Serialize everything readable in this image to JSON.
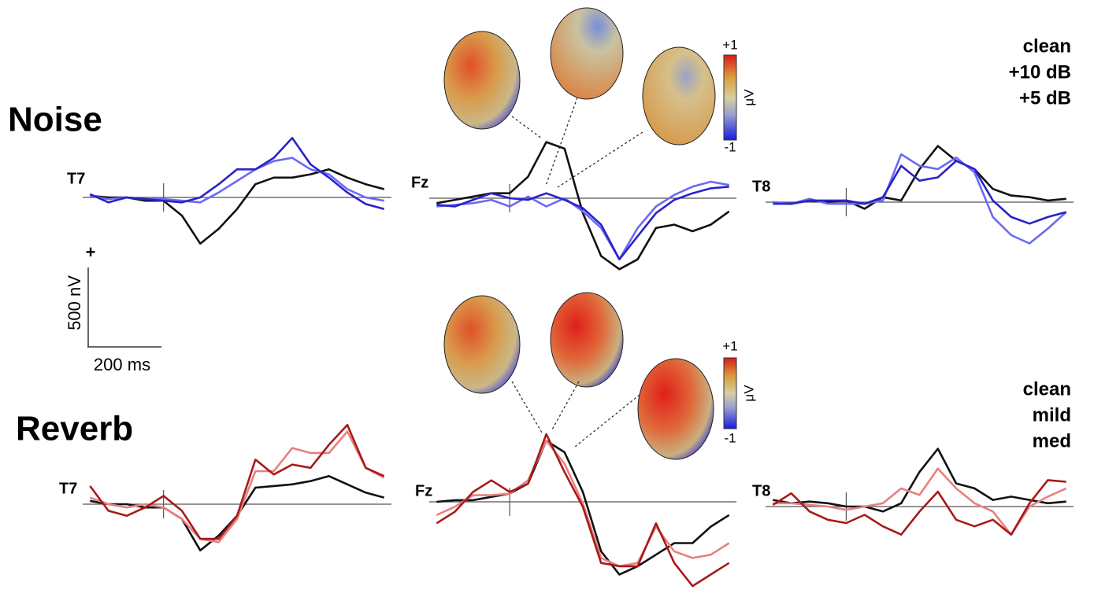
{
  "rows": [
    "Noise",
    "Reverb"
  ],
  "scale_bar": {
    "sign": "+",
    "y_label": "500 nV",
    "x_label": "200 ms"
  },
  "colorbars": [
    {
      "max": "+1",
      "min": "-1",
      "unit": "μV"
    },
    {
      "max": "+1",
      "min": "-1",
      "unit": "μV"
    }
  ],
  "chart_data": [
    {
      "type": "line",
      "title": "T7",
      "xlim": [
        -220,
        620
      ],
      "ylim": [
        -550,
        550
      ],
      "x": [
        -200,
        -150,
        -100,
        -50,
        0,
        50,
        100,
        150,
        200,
        250,
        300,
        350,
        400,
        450,
        500,
        550,
        600
      ],
      "series": [
        {
          "name": "clean",
          "color": "#111111",
          "values": [
            10,
            0,
            0,
            -20,
            -20,
            -110,
            -280,
            -190,
            -70,
            80,
            120,
            120,
            140,
            170,
            120,
            80,
            50
          ]
        },
        {
          "name": "+10 dB",
          "color": "#6a6af5",
          "values": [
            10,
            -10,
            0,
            -10,
            -10,
            -20,
            -30,
            30,
            100,
            170,
            220,
            240,
            170,
            140,
            50,
            0,
            -20
          ]
        },
        {
          "name": "+5 dB",
          "color": "#2a22c8",
          "values": [
            20,
            -30,
            0,
            -10,
            -20,
            -30,
            0,
            80,
            170,
            170,
            240,
            360,
            200,
            120,
            30,
            -40,
            -70
          ]
        }
      ]
    },
    {
      "type": "line",
      "title": "Fz",
      "xlim": [
        -220,
        620
      ],
      "ylim": [
        -550,
        550
      ],
      "x": [
        -200,
        -150,
        -100,
        -50,
        0,
        50,
        100,
        150,
        200,
        250,
        300,
        350,
        400,
        450,
        500,
        550,
        600
      ],
      "series": [
        {
          "name": "clean",
          "color": "#111111",
          "values": [
            -30,
            -10,
            10,
            30,
            30,
            130,
            340,
            300,
            -90,
            -350,
            -430,
            -370,
            -180,
            -160,
            -200,
            -160,
            -80
          ]
        },
        {
          "name": "+10 dB",
          "color": "#6a6af5",
          "values": [
            -50,
            -40,
            -30,
            -10,
            -50,
            10,
            -50,
            0,
            -80,
            -180,
            -370,
            -180,
            -50,
            20,
            70,
            100,
            80
          ]
        },
        {
          "name": "+5 dB",
          "color": "#2a22c8",
          "values": [
            -40,
            -50,
            -10,
            30,
            0,
            -10,
            30,
            -10,
            -60,
            -160,
            -370,
            -230,
            -90,
            -10,
            30,
            60,
            70
          ]
        }
      ]
    },
    {
      "type": "line",
      "title": "T8",
      "xlim": [
        -220,
        620
      ],
      "ylim": [
        -550,
        550
      ],
      "x": [
        -200,
        -150,
        -100,
        -50,
        0,
        50,
        100,
        150,
        200,
        250,
        300,
        350,
        400,
        450,
        500,
        550,
        600
      ],
      "series": [
        {
          "name": "clean",
          "color": "#111111",
          "values": [
            0,
            -10,
            10,
            0,
            10,
            -40,
            30,
            10,
            200,
            340,
            250,
            200,
            80,
            40,
            30,
            10,
            20
          ]
        },
        {
          "name": "+10 dB",
          "color": "#6a6af5",
          "values": [
            0,
            -10,
            20,
            -10,
            -10,
            -10,
            10,
            290,
            220,
            200,
            270,
            180,
            -90,
            -200,
            -250,
            -160,
            -60
          ]
        },
        {
          "name": "+5 dB",
          "color": "#2a22c8",
          "values": [
            -10,
            -10,
            10,
            10,
            10,
            -10,
            30,
            220,
            130,
            150,
            250,
            200,
            10,
            -90,
            -130,
            -90,
            -60
          ]
        }
      ]
    },
    {
      "type": "line",
      "title": "T7",
      "xlim": [
        -220,
        620
      ],
      "ylim": [
        -550,
        550
      ],
      "x": [
        -200,
        -150,
        -100,
        -50,
        0,
        50,
        100,
        150,
        200,
        250,
        300,
        350,
        400,
        450,
        500,
        550,
        600
      ],
      "series": [
        {
          "name": "clean",
          "color": "#111111",
          "values": [
            20,
            0,
            0,
            -20,
            -20,
            -90,
            -280,
            -190,
            -70,
            100,
            110,
            120,
            140,
            170,
            120,
            70,
            40
          ]
        },
        {
          "name": "mild",
          "color": "#e88080",
          "values": [
            40,
            0,
            -20,
            0,
            -20,
            -90,
            -210,
            -230,
            -90,
            200,
            200,
            340,
            310,
            310,
            440,
            220,
            160
          ]
        },
        {
          "name": "med",
          "color": "#a81a1a",
          "values": [
            110,
            -40,
            -70,
            -20,
            50,
            -40,
            -210,
            -210,
            -70,
            270,
            180,
            240,
            220,
            360,
            480,
            220,
            170
          ]
        }
      ]
    },
    {
      "type": "line",
      "title": "Fz",
      "xlim": [
        -220,
        620
      ],
      "ylim": [
        -550,
        550
      ],
      "x": [
        -200,
        -150,
        -100,
        -50,
        0,
        50,
        100,
        150,
        200,
        250,
        300,
        350,
        400,
        450,
        500,
        550,
        600
      ],
      "series": [
        {
          "name": "clean",
          "color": "#111111",
          "values": [
            0,
            10,
            10,
            30,
            50,
            110,
            370,
            300,
            60,
            -300,
            -440,
            -390,
            -320,
            -250,
            -250,
            -150,
            -80
          ]
        },
        {
          "name": "mild",
          "color": "#e88080",
          "values": [
            -80,
            -30,
            40,
            40,
            50,
            130,
            370,
            230,
            -10,
            -340,
            -390,
            -370,
            -150,
            -300,
            -340,
            -320,
            -250
          ]
        },
        {
          "name": "med",
          "color": "#a81a1a",
          "values": [
            -130,
            -60,
            60,
            130,
            60,
            110,
            410,
            180,
            -30,
            -370,
            -390,
            -390,
            -130,
            -370,
            -510,
            -440,
            -370
          ]
        }
      ]
    },
    {
      "type": "line",
      "title": "T8",
      "xlim": [
        -220,
        620
      ],
      "ylim": [
        -550,
        550
      ],
      "x": [
        -200,
        -150,
        -100,
        -50,
        0,
        50,
        100,
        150,
        200,
        250,
        300,
        350,
        400,
        450,
        500,
        550,
        600
      ],
      "series": [
        {
          "name": "clean",
          "color": "#111111",
          "values": [
            40,
            20,
            30,
            20,
            0,
            0,
            -30,
            20,
            210,
            350,
            140,
            110,
            40,
            60,
            40,
            20,
            30
          ]
        },
        {
          "name": "mild",
          "color": "#e88080",
          "values": [
            20,
            20,
            10,
            0,
            -20,
            0,
            20,
            110,
            70,
            230,
            110,
            20,
            -30,
            -170,
            0,
            60,
            110
          ]
        },
        {
          "name": "med",
          "color": "#a81a1a",
          "values": [
            10,
            80,
            -30,
            -80,
            -100,
            -50,
            -120,
            -170,
            -30,
            90,
            -80,
            -120,
            -80,
            -170,
            20,
            160,
            150
          ]
        }
      ]
    }
  ]
}
